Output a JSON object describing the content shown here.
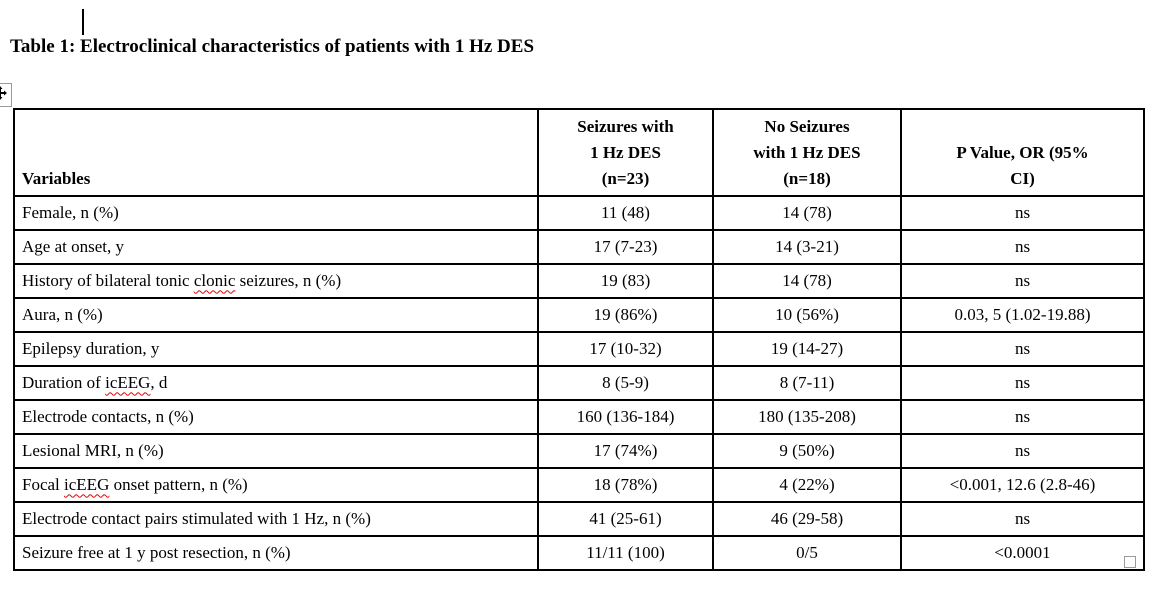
{
  "page": {
    "background": "#ffffff",
    "text_color": "#000000",
    "table_border_color": "#000000",
    "spellcheck_squiggle_color": "#e60000",
    "handle_border_color": "#9a9a9a"
  },
  "document": {
    "title": "Table 1: Electroclinical characteristics of patients with 1 Hz DES"
  },
  "table": {
    "header": {
      "variables": "Variables",
      "seizures": [
        "Seizures with",
        "1 Hz DES",
        "(n=23)"
      ],
      "no_seizures": [
        "No Seizures",
        "with 1 Hz DES",
        "(n=18)"
      ],
      "p_value": [
        "P Value, OR (95%",
        "CI)"
      ]
    },
    "rows": [
      {
        "variable": "Female, n (%)",
        "seizures": "11 (48)",
        "no_seizures": "14 (78)",
        "p_value": "ns"
      },
      {
        "variable": "Age at onset, y",
        "seizures": "17 (7-23)",
        "no_seizures": "14 (3-21)",
        "p_value": "ns"
      },
      {
        "variable": "History of bilateral tonic clonic seizures, n (%)",
        "misspelled_word": "clonic",
        "seizures": "19 (83)",
        "no_seizures": "14 (78)",
        "p_value": "ns"
      },
      {
        "variable": "Aura, n (%)",
        "seizures": "19 (86%)",
        "no_seizures": "10 (56%)",
        "p_value": "0.03, 5 (1.02-19.88)"
      },
      {
        "variable": "Epilepsy duration, y",
        "seizures": "17 (10-32)",
        "no_seizures": "19 (14-27)",
        "p_value": "ns"
      },
      {
        "variable": "Duration of icEEG, d",
        "misspelled_word": "icEEG",
        "seizures": "8 (5-9)",
        "no_seizures": "8 (7-11)",
        "p_value": "ns"
      },
      {
        "variable": "Electrode contacts, n (%)",
        "seizures": "160 (136-184)",
        "no_seizures": "180 (135-208)",
        "p_value": "ns"
      },
      {
        "variable": "Lesional MRI, n (%)",
        "seizures": "17 (74%)",
        "no_seizures": "9 (50%)",
        "p_value": "ns"
      },
      {
        "variable": "Focal icEEG onset pattern, n (%)",
        "misspelled_word": "icEEG",
        "seizures": "18 (78%)",
        "no_seizures": "4 (22%)",
        "p_value": "<0.001, 12.6 (2.8-46)"
      },
      {
        "variable": "Electrode contact pairs stimulated with 1 Hz, n (%)",
        "seizures": "41 (25-61)",
        "no_seizures": "46 (29-58)",
        "p_value": "ns"
      },
      {
        "variable": "Seizure free at 1 y post resection, n (%)",
        "seizures": "11/11 (100)",
        "no_seizures": "0/5",
        "p_value": "<0.0001"
      }
    ]
  }
}
